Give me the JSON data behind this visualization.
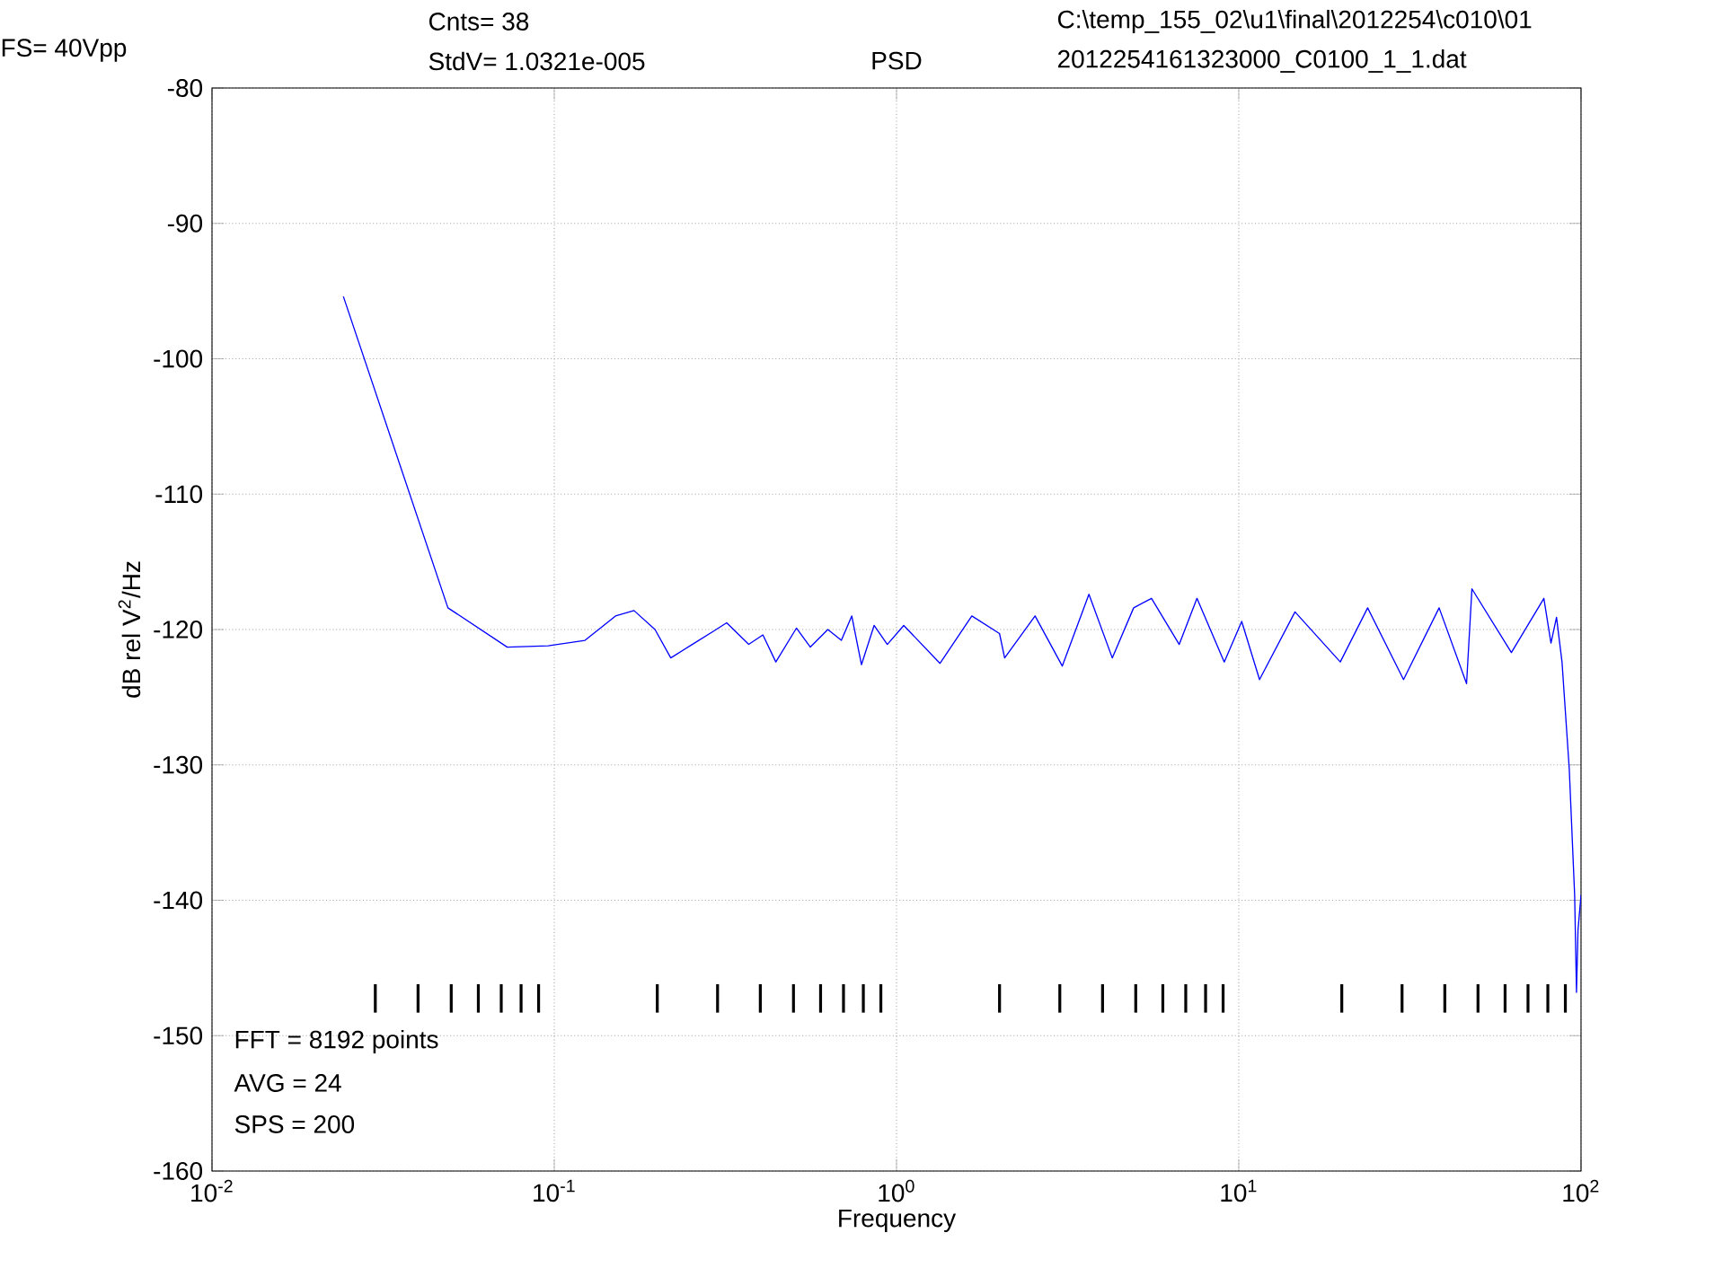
{
  "chart_data": {
    "type": "line",
    "title": "PSD",
    "xlabel": "Frequency",
    "ylabel": "dB rel V$^{2}$/Hz",
    "annotations": [
      "FS= 40Vpp",
      "Cnts= 38",
      "StdV= 1.0321e-005",
      "C:\\temp_155_02\\u1\\final\\2012254\\c010\\01",
      "2012254161323000_C0100_1_1.dat",
      "FFT = 8192 points",
      "AVG = 24",
      "SPS = 200"
    ],
    "log": "x",
    "grid": true,
    "xlim": [
      0.01,
      100
    ],
    "ylim": [
      -160,
      -80
    ],
    "xticks": [
      {
        "value": 0.01,
        "label": "10$^{-2}$"
      },
      {
        "value": 0.1,
        "label": "10$^{-1}$"
      },
      {
        "value": 1,
        "label": "10$^{0}$"
      },
      {
        "value": 10,
        "label": "10$^{1}$"
      },
      {
        "value": 100,
        "label": "10$^{2}$"
      }
    ],
    "yticks": [
      -160,
      -150,
      -140,
      -130,
      -120,
      -110,
      -100,
      -90,
      -80
    ],
    "series": [
      {
        "color": "#0000ff",
        "x": [
          0.0242,
          0.0489,
          0.0729,
          0.096,
          0.123,
          0.151,
          0.171,
          0.197,
          0.219,
          0.253,
          0.293,
          0.319,
          0.37,
          0.407,
          0.444,
          0.51,
          0.56,
          0.63,
          0.69,
          0.74,
          0.79,
          0.86,
          0.94,
          1.05,
          1.34,
          1.66,
          2.0,
          2.07,
          2.54,
          3.05,
          3.65,
          4.27,
          4.93,
          5.56,
          6.7,
          7.55,
          9.07,
          10.2,
          11.5,
          14.6,
          19.8,
          23.8,
          30.3,
          38.5,
          46.3,
          48.0,
          62.6,
          77.9,
          81.7,
          84.8,
          88.0,
          92.4,
          95.8,
          97.0,
          98.0,
          100
        ],
        "values": [
          -95.4,
          -118.4,
          -121.3,
          -121.2,
          -120.8,
          -119.0,
          -118.6,
          -120.0,
          -122.1,
          -121.1,
          -120.1,
          -119.5,
          -121.1,
          -120.4,
          -122.4,
          -119.9,
          -121.3,
          -120.0,
          -120.8,
          -119.0,
          -122.6,
          -119.7,
          -121.1,
          -119.7,
          -122.5,
          -119.0,
          -120.3,
          -122.1,
          -119.0,
          -122.7,
          -117.4,
          -122.1,
          -118.4,
          -117.7,
          -121.1,
          -117.7,
          -122.4,
          -119.4,
          -123.7,
          -118.7,
          -122.4,
          -118.4,
          -123.7,
          -118.4,
          -124.0,
          -117.0,
          -121.7,
          -117.7,
          -121.0,
          -119.1,
          -122.4,
          -130.3,
          -139.6,
          -146.8,
          -142.2,
          -139.6
        ]
      },
      {
        "type": "bar",
        "color": "#000000",
        "base": [
          -148.3,
          -148.3,
          -148.3,
          -148.3,
          -148.3,
          -148.3,
          -148.3,
          -148.3,
          -148.3,
          -148.3,
          -148.3,
          -148.3,
          -148.3,
          -148.3,
          -148.3,
          -148.3,
          -148.3,
          -148.3,
          -148.3,
          -148.3,
          -148.3,
          -148.3,
          -148.3,
          -148.3,
          -148.3,
          -148.3,
          -148.3,
          -148.3,
          -148.3,
          -148.3,
          -148.3
        ],
        "x": [
          0.03,
          0.04,
          0.05,
          0.06,
          0.07,
          0.08,
          0.09,
          0.2,
          0.3,
          0.4,
          0.5,
          0.6,
          0.7,
          0.8,
          0.9,
          2,
          3,
          4,
          5,
          6,
          7,
          8,
          9,
          20,
          30,
          40,
          50,
          60,
          70,
          80,
          90
        ],
        "values": [
          2.1,
          2.1,
          2.1,
          2.1,
          2.1,
          2.1,
          2.1,
          2.1,
          2.1,
          2.1,
          2.1,
          2.1,
          2.1,
          2.1,
          2.1,
          2.1,
          2.1,
          2.1,
          2.1,
          2.1,
          2.1,
          2.1,
          2.1,
          2.1,
          2.1,
          2.1,
          2.1,
          2.1,
          2.1,
          2.1,
          2.1
        ]
      }
    ]
  }
}
